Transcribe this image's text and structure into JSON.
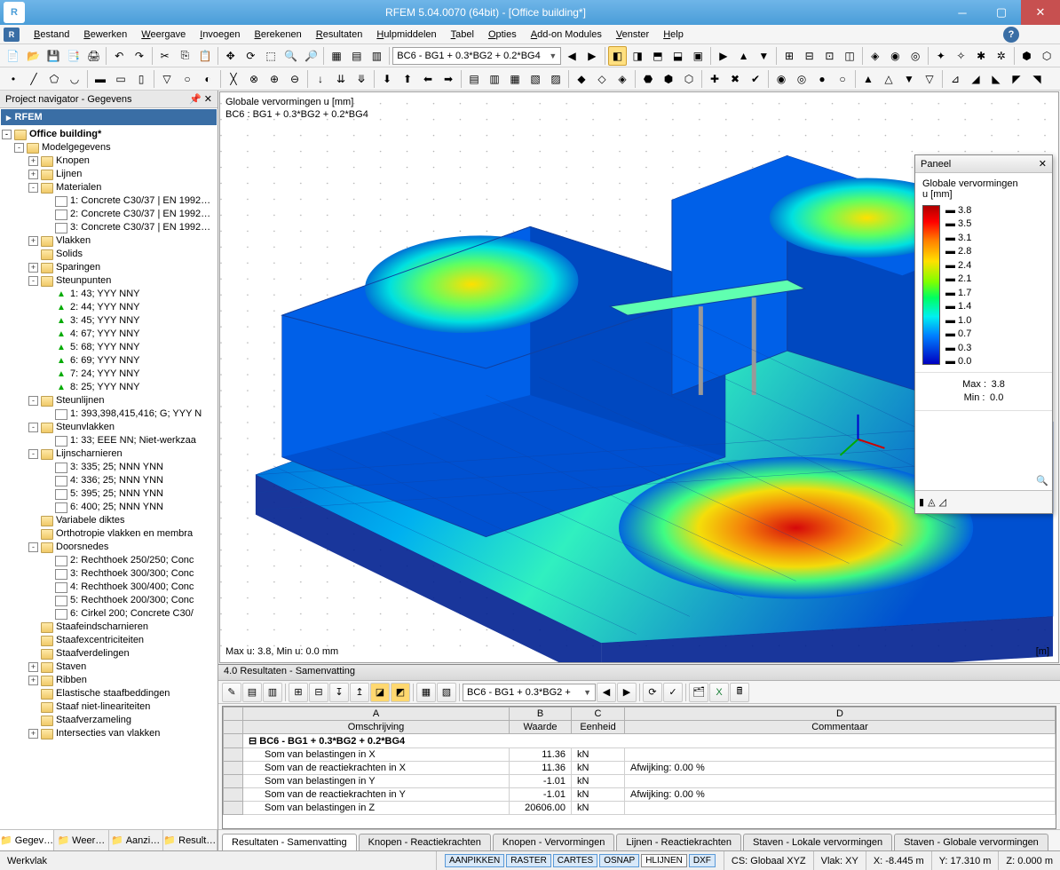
{
  "window": {
    "title": "RFEM 5.04.0070 (64bit) - [Office building*]"
  },
  "menu": {
    "items": [
      "Bestand",
      "Bewerken",
      "Weergave",
      "Invoegen",
      "Berekenen",
      "Resultaten",
      "Hulpmiddelen",
      "Tabel",
      "Opties",
      "Add-on Modules",
      "Venster",
      "Help"
    ]
  },
  "toolbar1": {
    "combo": "BC6 - BG1 + 0.3*BG2 + 0.2*BG4"
  },
  "navigator": {
    "title": "Project navigator - Gegevens",
    "root": "RFEM",
    "project": "Office building*",
    "items": [
      {
        "d": 1,
        "exp": "-",
        "ico": "folder",
        "label": "Modelgegevens"
      },
      {
        "d": 2,
        "exp": "+",
        "ico": "folder",
        "label": "Knopen"
      },
      {
        "d": 2,
        "exp": "+",
        "ico": "folder",
        "label": "Lijnen"
      },
      {
        "d": 2,
        "exp": "-",
        "ico": "folder",
        "label": "Materialen"
      },
      {
        "d": 3,
        "exp": "",
        "ico": "file",
        "label": "1: Concrete C30/37 | EN 1992…"
      },
      {
        "d": 3,
        "exp": "",
        "ico": "file",
        "label": "2: Concrete C30/37 | EN 1992…"
      },
      {
        "d": 3,
        "exp": "",
        "ico": "file",
        "label": "3: Concrete C30/37 | EN 1992…"
      },
      {
        "d": 2,
        "exp": "+",
        "ico": "folder",
        "label": "Vlakken"
      },
      {
        "d": 2,
        "exp": "",
        "ico": "folder",
        "label": "Solids"
      },
      {
        "d": 2,
        "exp": "+",
        "ico": "folder",
        "label": "Sparingen"
      },
      {
        "d": 2,
        "exp": "-",
        "ico": "folder",
        "label": "Steunpunten"
      },
      {
        "d": 3,
        "exp": "",
        "ico": "sup",
        "label": "1: 43; YYY NNY"
      },
      {
        "d": 3,
        "exp": "",
        "ico": "sup",
        "label": "2: 44; YYY NNY"
      },
      {
        "d": 3,
        "exp": "",
        "ico": "sup",
        "label": "3: 45; YYY NNY"
      },
      {
        "d": 3,
        "exp": "",
        "ico": "sup",
        "label": "4: 67; YYY NNY"
      },
      {
        "d": 3,
        "exp": "",
        "ico": "sup",
        "label": "5: 68; YYY NNY"
      },
      {
        "d": 3,
        "exp": "",
        "ico": "sup",
        "label": "6: 69; YYY NNY"
      },
      {
        "d": 3,
        "exp": "",
        "ico": "sup",
        "label": "7: 24; YYY NNY"
      },
      {
        "d": 3,
        "exp": "",
        "ico": "sup",
        "label": "8: 25; YYY NNY"
      },
      {
        "d": 2,
        "exp": "-",
        "ico": "folder",
        "label": "Steunlijnen"
      },
      {
        "d": 3,
        "exp": "",
        "ico": "file",
        "label": "1: 393,398,415,416; G; YYY N"
      },
      {
        "d": 2,
        "exp": "-",
        "ico": "folder",
        "label": "Steunvlakken"
      },
      {
        "d": 3,
        "exp": "",
        "ico": "file",
        "label": "1: 33; EEE NN; Niet-werkzaa"
      },
      {
        "d": 2,
        "exp": "-",
        "ico": "folder",
        "label": "Lijnscharnieren"
      },
      {
        "d": 3,
        "exp": "",
        "ico": "file",
        "label": "3: 335; 25; NNN YNN"
      },
      {
        "d": 3,
        "exp": "",
        "ico": "file",
        "label": "4: 336; 25; NNN YNN"
      },
      {
        "d": 3,
        "exp": "",
        "ico": "file",
        "label": "5: 395; 25; NNN YNN"
      },
      {
        "d": 3,
        "exp": "",
        "ico": "file",
        "label": "6: 400; 25; NNN YNN"
      },
      {
        "d": 2,
        "exp": "",
        "ico": "folder",
        "label": "Variabele diktes"
      },
      {
        "d": 2,
        "exp": "",
        "ico": "folder",
        "label": "Orthotropie vlakken en membra"
      },
      {
        "d": 2,
        "exp": "-",
        "ico": "folder",
        "label": "Doorsnedes"
      },
      {
        "d": 3,
        "exp": "",
        "ico": "file",
        "label": "2: Rechthoek 250/250; Conc"
      },
      {
        "d": 3,
        "exp": "",
        "ico": "file",
        "label": "3: Rechthoek 300/300; Conc"
      },
      {
        "d": 3,
        "exp": "",
        "ico": "file",
        "label": "4: Rechthoek 300/400; Conc"
      },
      {
        "d": 3,
        "exp": "",
        "ico": "file",
        "label": "5: Rechthoek 200/300; Conc"
      },
      {
        "d": 3,
        "exp": "",
        "ico": "file",
        "label": "6: Cirkel 200; Concrete C30/"
      },
      {
        "d": 2,
        "exp": "",
        "ico": "folder",
        "label": "Staafeindscharnieren"
      },
      {
        "d": 2,
        "exp": "",
        "ico": "folder",
        "label": "Staafexcentriciteiten"
      },
      {
        "d": 2,
        "exp": "",
        "ico": "folder",
        "label": "Staafverdelingen"
      },
      {
        "d": 2,
        "exp": "+",
        "ico": "folder",
        "label": "Staven"
      },
      {
        "d": 2,
        "exp": "+",
        "ico": "folder",
        "label": "Ribben"
      },
      {
        "d": 2,
        "exp": "",
        "ico": "folder",
        "label": "Elastische staafbeddingen"
      },
      {
        "d": 2,
        "exp": "",
        "ico": "folder",
        "label": "Staaf niet-lineariteiten"
      },
      {
        "d": 2,
        "exp": "",
        "ico": "folder",
        "label": "Staafverzameling"
      },
      {
        "d": 2,
        "exp": "+",
        "ico": "folder",
        "label": "Intersecties van vlakken"
      }
    ],
    "tabs": [
      "Gegev…",
      "Weer…",
      "Aanzi…",
      "Result…"
    ],
    "active_tab": 0
  },
  "viewport": {
    "label_top1": "Globale vervormingen u [mm]",
    "label_top2": "BC6 : BG1 + 0.3*BG2 + 0.2*BG4",
    "label_bl": "Max u: 3.8, Min u: 0.0 mm",
    "label_br": "[m]",
    "bg": "#ffffff",
    "grid_dot": "#b0b0b0",
    "mesh_line": "#1040a0"
  },
  "panel": {
    "title": "Paneel",
    "subtitle1": "Globale vervormingen",
    "subtitle2": "u [mm]",
    "ticks": [
      "3.8",
      "3.5",
      "3.1",
      "2.8",
      "2.4",
      "2.1",
      "1.7",
      "1.4",
      "1.0",
      "0.7",
      "0.3",
      "0.0"
    ],
    "gradient_stops": [
      {
        "p": 0,
        "c": "#b00000"
      },
      {
        "p": 10,
        "c": "#ff0000"
      },
      {
        "p": 22,
        "c": "#ff8000"
      },
      {
        "p": 35,
        "c": "#ffe000"
      },
      {
        "p": 48,
        "c": "#80ff00"
      },
      {
        "p": 58,
        "c": "#00ff60"
      },
      {
        "p": 70,
        "c": "#00f0f0"
      },
      {
        "p": 82,
        "c": "#0080ff"
      },
      {
        "p": 100,
        "c": "#0000c0"
      }
    ],
    "max_label": "Max :",
    "max_val": "3.8",
    "min_label": "Min :",
    "min_val": "0.0"
  },
  "results": {
    "header": "4.0 Resultaten - Samenvatting",
    "combo": "BC6 - BG1 + 0.3*BG2 +",
    "col_letters": [
      "A",
      "B",
      "C",
      "D"
    ],
    "cols": [
      "Omschrijving",
      "Waarde",
      "Eenheid",
      "Commentaar"
    ],
    "group": "BC6 - BG1 + 0.3*BG2 + 0.2*BG4",
    "rows": [
      {
        "desc": "Som van belastingen in X",
        "val": "11.36",
        "unit": "kN",
        "comm": ""
      },
      {
        "desc": "Som van de reactiekrachten in X",
        "val": "11.36",
        "unit": "kN",
        "comm": "Afwijking:  0.00 %"
      },
      {
        "desc": "Som van belastingen in Y",
        "val": "-1.01",
        "unit": "kN",
        "comm": ""
      },
      {
        "desc": "Som van de reactiekrachten in Y",
        "val": "-1.01",
        "unit": "kN",
        "comm": "Afwijking:  0.00 %"
      },
      {
        "desc": "Som van belastingen in Z",
        "val": "20606.00",
        "unit": "kN",
        "comm": ""
      }
    ],
    "tabs": [
      "Resultaten - Samenvatting",
      "Knopen - Reactiekrachten",
      "Knopen - Vervormingen",
      "Lijnen - Reactiekrachten",
      "Staven - Lokale vervormingen",
      "Staven - Globale vervormingen"
    ],
    "active_tab": 0
  },
  "statusbar": {
    "left": "Werkvlak",
    "toggles": [
      {
        "t": "AANPIKKEN",
        "on": true
      },
      {
        "t": "RASTER",
        "on": true
      },
      {
        "t": "CARTES",
        "on": true
      },
      {
        "t": "OSNAP",
        "on": true
      },
      {
        "t": "HLIJNEN",
        "on": false
      },
      {
        "t": "DXF",
        "on": true
      }
    ],
    "cs": "CS: Globaal XYZ",
    "plane": "Vlak: XY",
    "x": "X:  -8.445 m",
    "y": "Y:  17.310 m",
    "z": "Z:   0.000 m"
  }
}
